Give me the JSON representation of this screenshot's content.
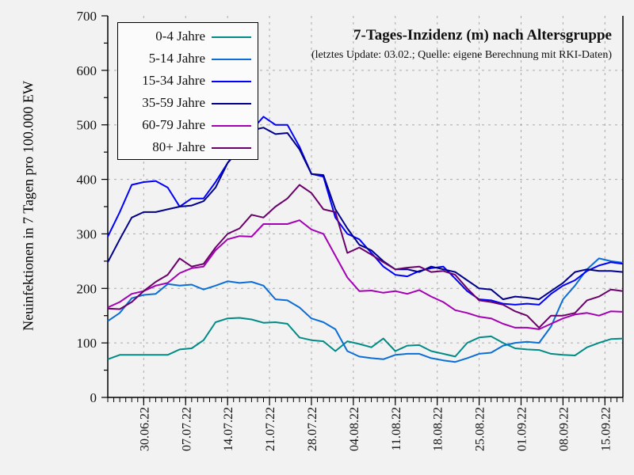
{
  "chart_data": {
    "type": "line",
    "title": "7-Tages-Inzidenz (m) nach Altersgruppe",
    "subtitle": "(letztes Update: 03.02.; Quelle: eigene Berechnung mit RKI-Daten)",
    "xlabel": "",
    "ylabel": "Neuinfektionen in 7 Tagen pro 100.000 EW",
    "ylim": [
      0,
      700
    ],
    "yticks": [
      0,
      100,
      200,
      300,
      400,
      500,
      600,
      700
    ],
    "xlim_days": [
      0,
      86
    ],
    "x_tick_labels": [
      {
        "day": 6,
        "label": "30.06.22"
      },
      {
        "day": 13,
        "label": "07.07.22"
      },
      {
        "day": 20,
        "label": "14.07.22"
      },
      {
        "day": 27,
        "label": "21.07.22"
      },
      {
        "day": 34,
        "label": "28.07.22"
      },
      {
        "day": 41,
        "label": "04.08.22"
      },
      {
        "day": 48,
        "label": "11.08.22"
      },
      {
        "day": 55,
        "label": "18.08.22"
      },
      {
        "day": 62,
        "label": "25.08.22"
      },
      {
        "day": 69,
        "label": "01.09.22"
      },
      {
        "day": 76,
        "label": "08.09.22"
      },
      {
        "day": 83,
        "label": "15.09.22"
      }
    ],
    "grid": true,
    "legend_position": "top-left",
    "x_days": [
      0,
      2,
      4,
      6,
      8,
      10,
      12,
      14,
      16,
      18,
      20,
      22,
      24,
      26,
      28,
      30,
      32,
      34,
      36,
      38,
      40,
      42,
      44,
      46,
      48,
      50,
      52,
      54,
      56,
      58,
      60,
      62,
      64,
      66,
      68,
      70,
      72,
      74,
      76,
      78,
      80,
      82,
      84,
      86
    ],
    "series": [
      {
        "name": "0-4 Jahre",
        "color": "#008b87",
        "values": [
          70,
          78,
          78,
          78,
          78,
          78,
          88,
          90,
          105,
          138,
          145,
          146,
          143,
          137,
          138,
          135,
          110,
          105,
          103,
          85,
          103,
          98,
          92,
          108,
          85,
          95,
          96,
          85,
          80,
          75,
          100,
          110,
          112,
          100,
          90,
          88,
          87,
          80,
          78,
          77,
          92,
          100,
          107,
          108
        ]
      },
      {
        "name": "5-14 Jahre",
        "color": "#0a6ed6",
        "values": [
          140,
          155,
          182,
          188,
          190,
          208,
          205,
          207,
          198,
          205,
          213,
          210,
          212,
          205,
          180,
          178,
          165,
          145,
          138,
          125,
          85,
          75,
          72,
          70,
          78,
          80,
          80,
          72,
          68,
          65,
          72,
          80,
          82,
          95,
          100,
          102,
          100,
          130,
          180,
          205,
          235,
          255,
          250,
          247
        ]
      },
      {
        "name": "15-34 Jahre",
        "color": "#0000ff",
        "values": [
          295,
          340,
          390,
          395,
          397,
          385,
          350,
          365,
          365,
          395,
          430,
          460,
          490,
          515,
          500,
          500,
          460,
          410,
          405,
          330,
          300,
          290,
          265,
          240,
          225,
          222,
          232,
          237,
          240,
          218,
          195,
          180,
          178,
          172,
          170,
          172,
          170,
          190,
          205,
          215,
          232,
          242,
          248,
          245
        ]
      },
      {
        "name": "35-59 Jahre",
        "color": "#00008b",
        "values": [
          248,
          290,
          330,
          340,
          340,
          345,
          350,
          352,
          360,
          385,
          430,
          455,
          490,
          495,
          483,
          485,
          455,
          410,
          408,
          345,
          310,
          280,
          270,
          250,
          235,
          235,
          230,
          240,
          235,
          230,
          215,
          200,
          198,
          180,
          185,
          183,
          180,
          195,
          210,
          230,
          235,
          232,
          232,
          230
        ]
      },
      {
        "name": "60-79 Jahre",
        "color": "#a400b4",
        "values": [
          165,
          175,
          190,
          195,
          205,
          210,
          228,
          237,
          240,
          270,
          290,
          296,
          295,
          318,
          318,
          318,
          325,
          308,
          300,
          260,
          220,
          195,
          196,
          192,
          195,
          190,
          197,
          185,
          175,
          160,
          155,
          148,
          145,
          135,
          128,
          128,
          125,
          135,
          145,
          152,
          155,
          150,
          158,
          157
        ]
      },
      {
        "name": "80+ Jahre",
        "color": "#6a006a",
        "values": [
          163,
          162,
          175,
          195,
          212,
          225,
          255,
          240,
          245,
          275,
          300,
          310,
          335,
          330,
          350,
          365,
          390,
          375,
          345,
          340,
          265,
          275,
          262,
          248,
          235,
          238,
          240,
          230,
          232,
          225,
          200,
          178,
          175,
          170,
          158,
          150,
          128,
          150,
          150,
          155,
          178,
          185,
          198,
          195
        ]
      }
    ]
  }
}
